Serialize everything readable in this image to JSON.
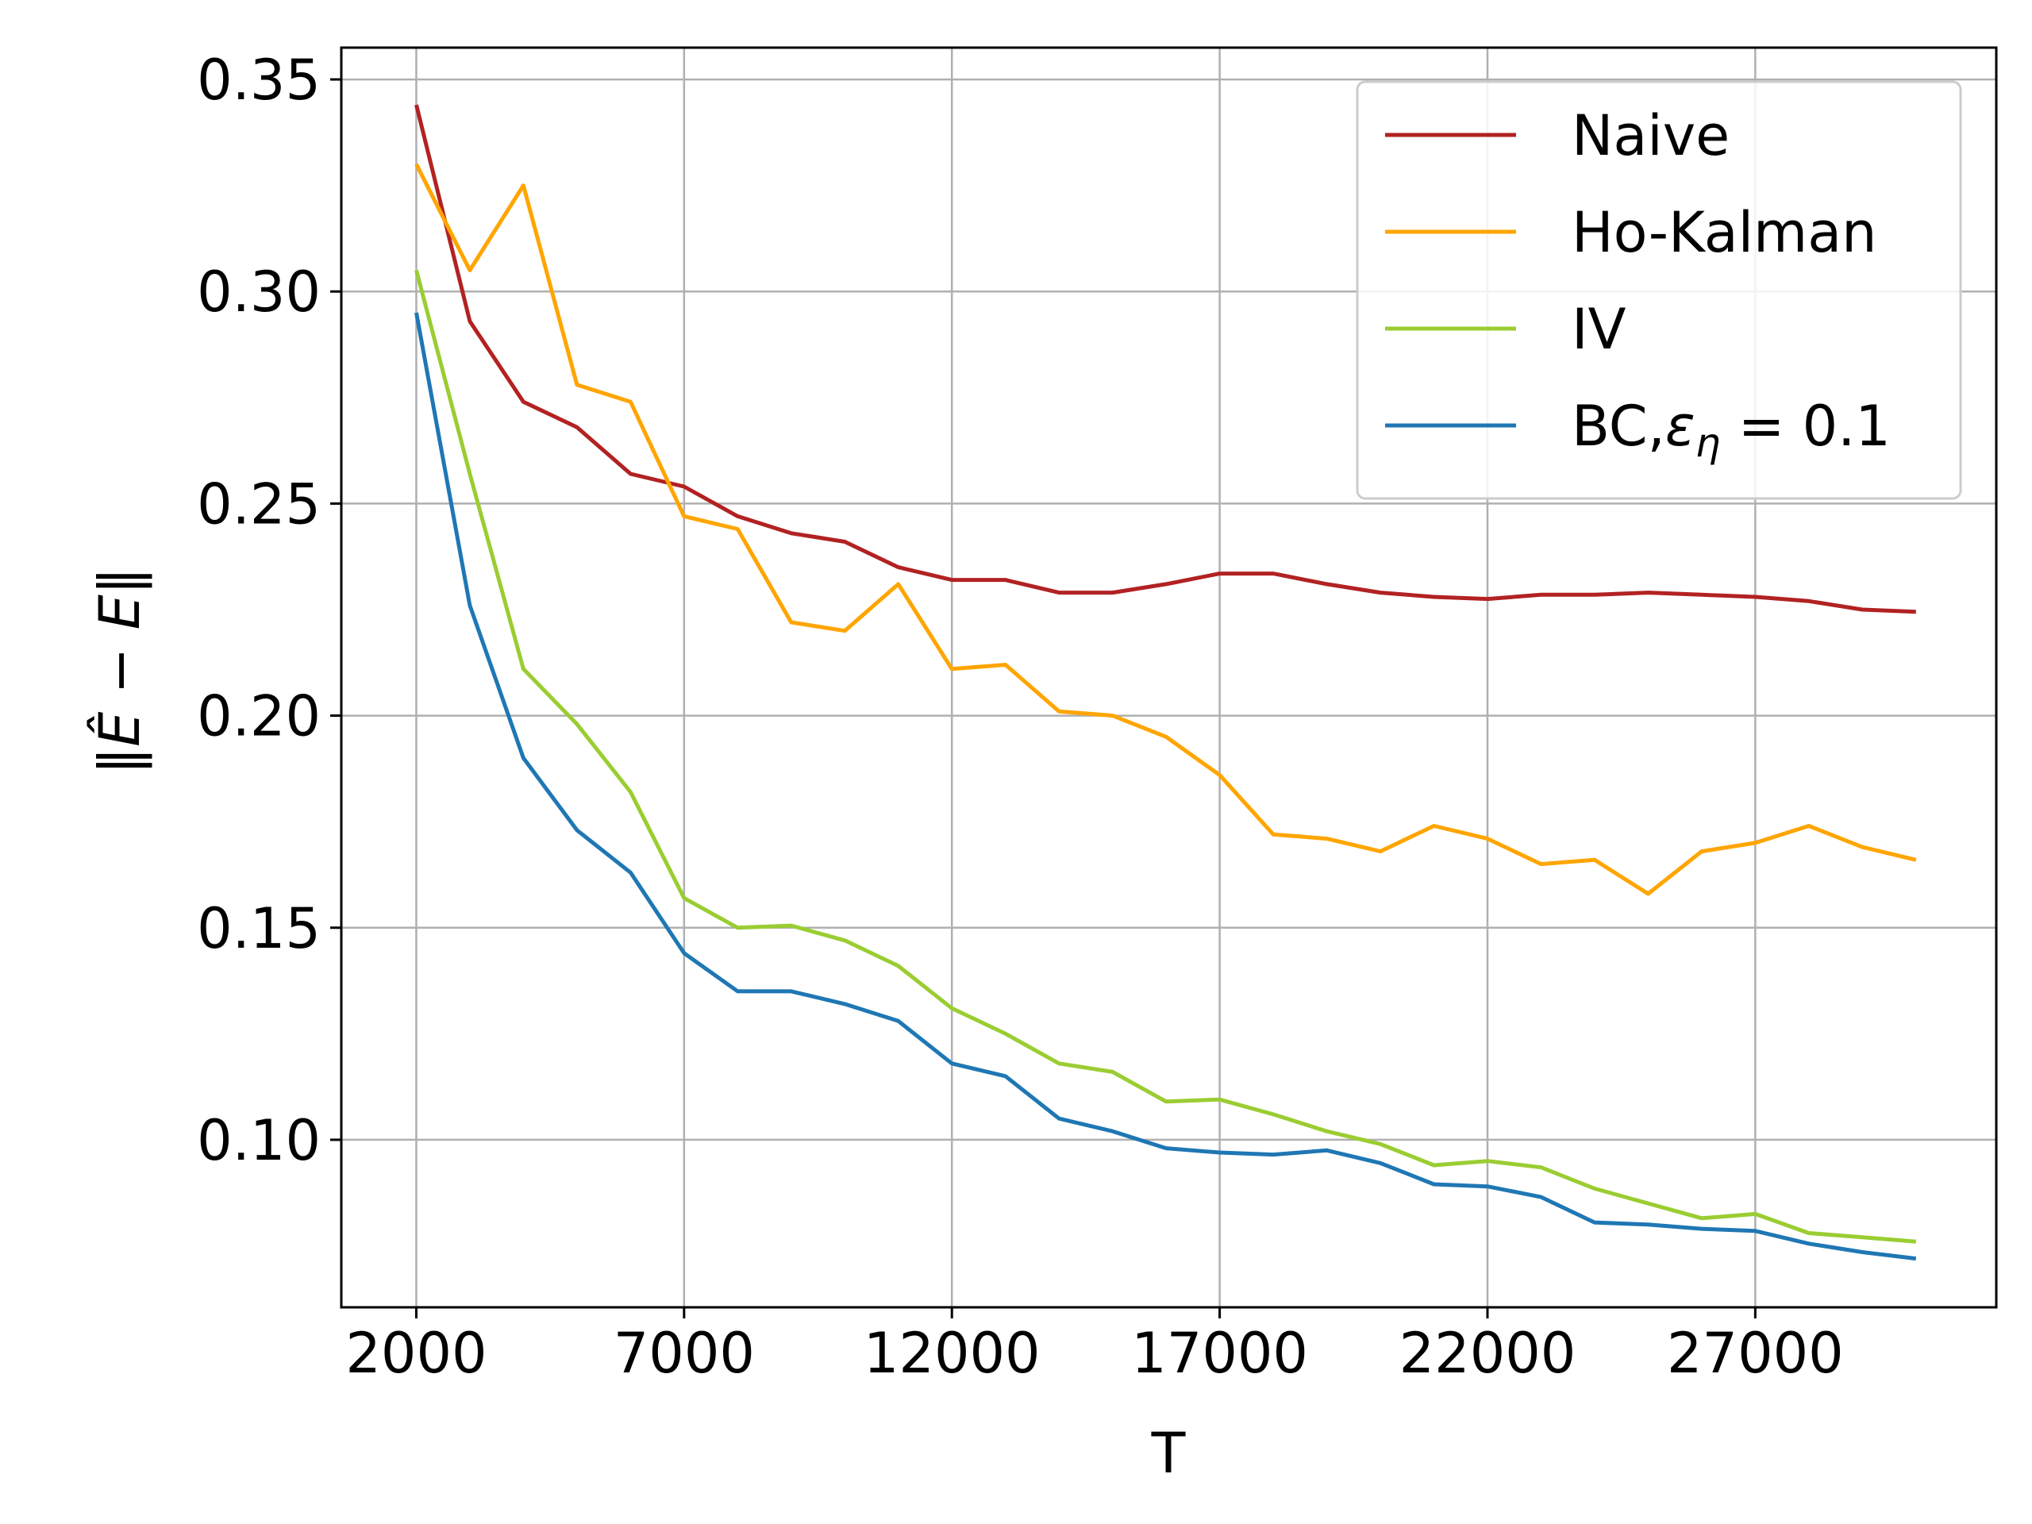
{
  "chart_data": {
    "type": "line",
    "xlabel": "T",
    "ylabel": "‖Ê − E‖",
    "xlim": [
      600,
      31500
    ],
    "ylim": [
      0.0605,
      0.3575
    ],
    "xticks": [
      2000,
      7000,
      12000,
      17000,
      22000,
      27000
    ],
    "xtick_labels": [
      "2000",
      "7000",
      "12000",
      "17000",
      "22000",
      "27000"
    ],
    "yticks": [
      0.1,
      0.15,
      0.2,
      0.25,
      0.3,
      0.35
    ],
    "ytick_labels": [
      "0.10",
      "0.15",
      "0.20",
      "0.25",
      "0.30",
      "0.35"
    ],
    "grid": true,
    "legend_position": "top-right",
    "x": [
      2000,
      3000,
      4000,
      5000,
      6000,
      7000,
      8000,
      9000,
      10000,
      11000,
      12000,
      13000,
      14000,
      15000,
      16000,
      17000,
      18000,
      19000,
      20000,
      21000,
      22000,
      23000,
      24000,
      25000,
      26000,
      27000,
      28000,
      29000,
      30000
    ],
    "series": [
      {
        "name": "Naive",
        "color": "#b22222",
        "values": [
          0.344,
          0.293,
          0.274,
          0.268,
          0.257,
          0.254,
          0.247,
          0.243,
          0.241,
          0.235,
          0.232,
          0.232,
          0.229,
          0.229,
          0.231,
          0.2335,
          0.2335,
          0.231,
          0.229,
          0.228,
          0.2275,
          0.2285,
          0.2285,
          0.229,
          0.2285,
          0.228,
          0.227,
          0.225,
          0.2245
        ]
      },
      {
        "name": "Ho-Kalman",
        "color": "#ffa500",
        "values": [
          0.33,
          0.305,
          0.325,
          0.278,
          0.274,
          0.247,
          0.244,
          0.222,
          0.22,
          0.231,
          0.211,
          0.212,
          0.201,
          0.2,
          0.195,
          0.186,
          0.172,
          0.171,
          0.168,
          0.174,
          0.171,
          0.165,
          0.166,
          0.158,
          0.168,
          0.17,
          0.174,
          0.169,
          0.166
        ]
      },
      {
        "name": "IV",
        "color": "#9acd32",
        "values": [
          0.305,
          0.257,
          0.211,
          0.198,
          0.182,
          0.157,
          0.15,
          0.1505,
          0.147,
          0.141,
          0.131,
          0.125,
          0.118,
          0.116,
          0.109,
          0.1095,
          0.106,
          0.102,
          0.099,
          0.094,
          0.095,
          0.0935,
          0.0885,
          0.085,
          0.0815,
          0.0825,
          0.078,
          0.077,
          0.076
        ]
      },
      {
        "name": "BC,ε_η = 0.1",
        "color": "#1f77b4",
        "values": [
          0.295,
          0.226,
          0.19,
          0.173,
          0.163,
          0.144,
          0.135,
          0.135,
          0.132,
          0.128,
          0.118,
          0.115,
          0.105,
          0.102,
          0.098,
          0.097,
          0.0965,
          0.0975,
          0.0945,
          0.0895,
          0.089,
          0.0865,
          0.0805,
          0.08,
          0.079,
          0.0785,
          0.0755,
          0.0735,
          0.072
        ]
      }
    ]
  }
}
